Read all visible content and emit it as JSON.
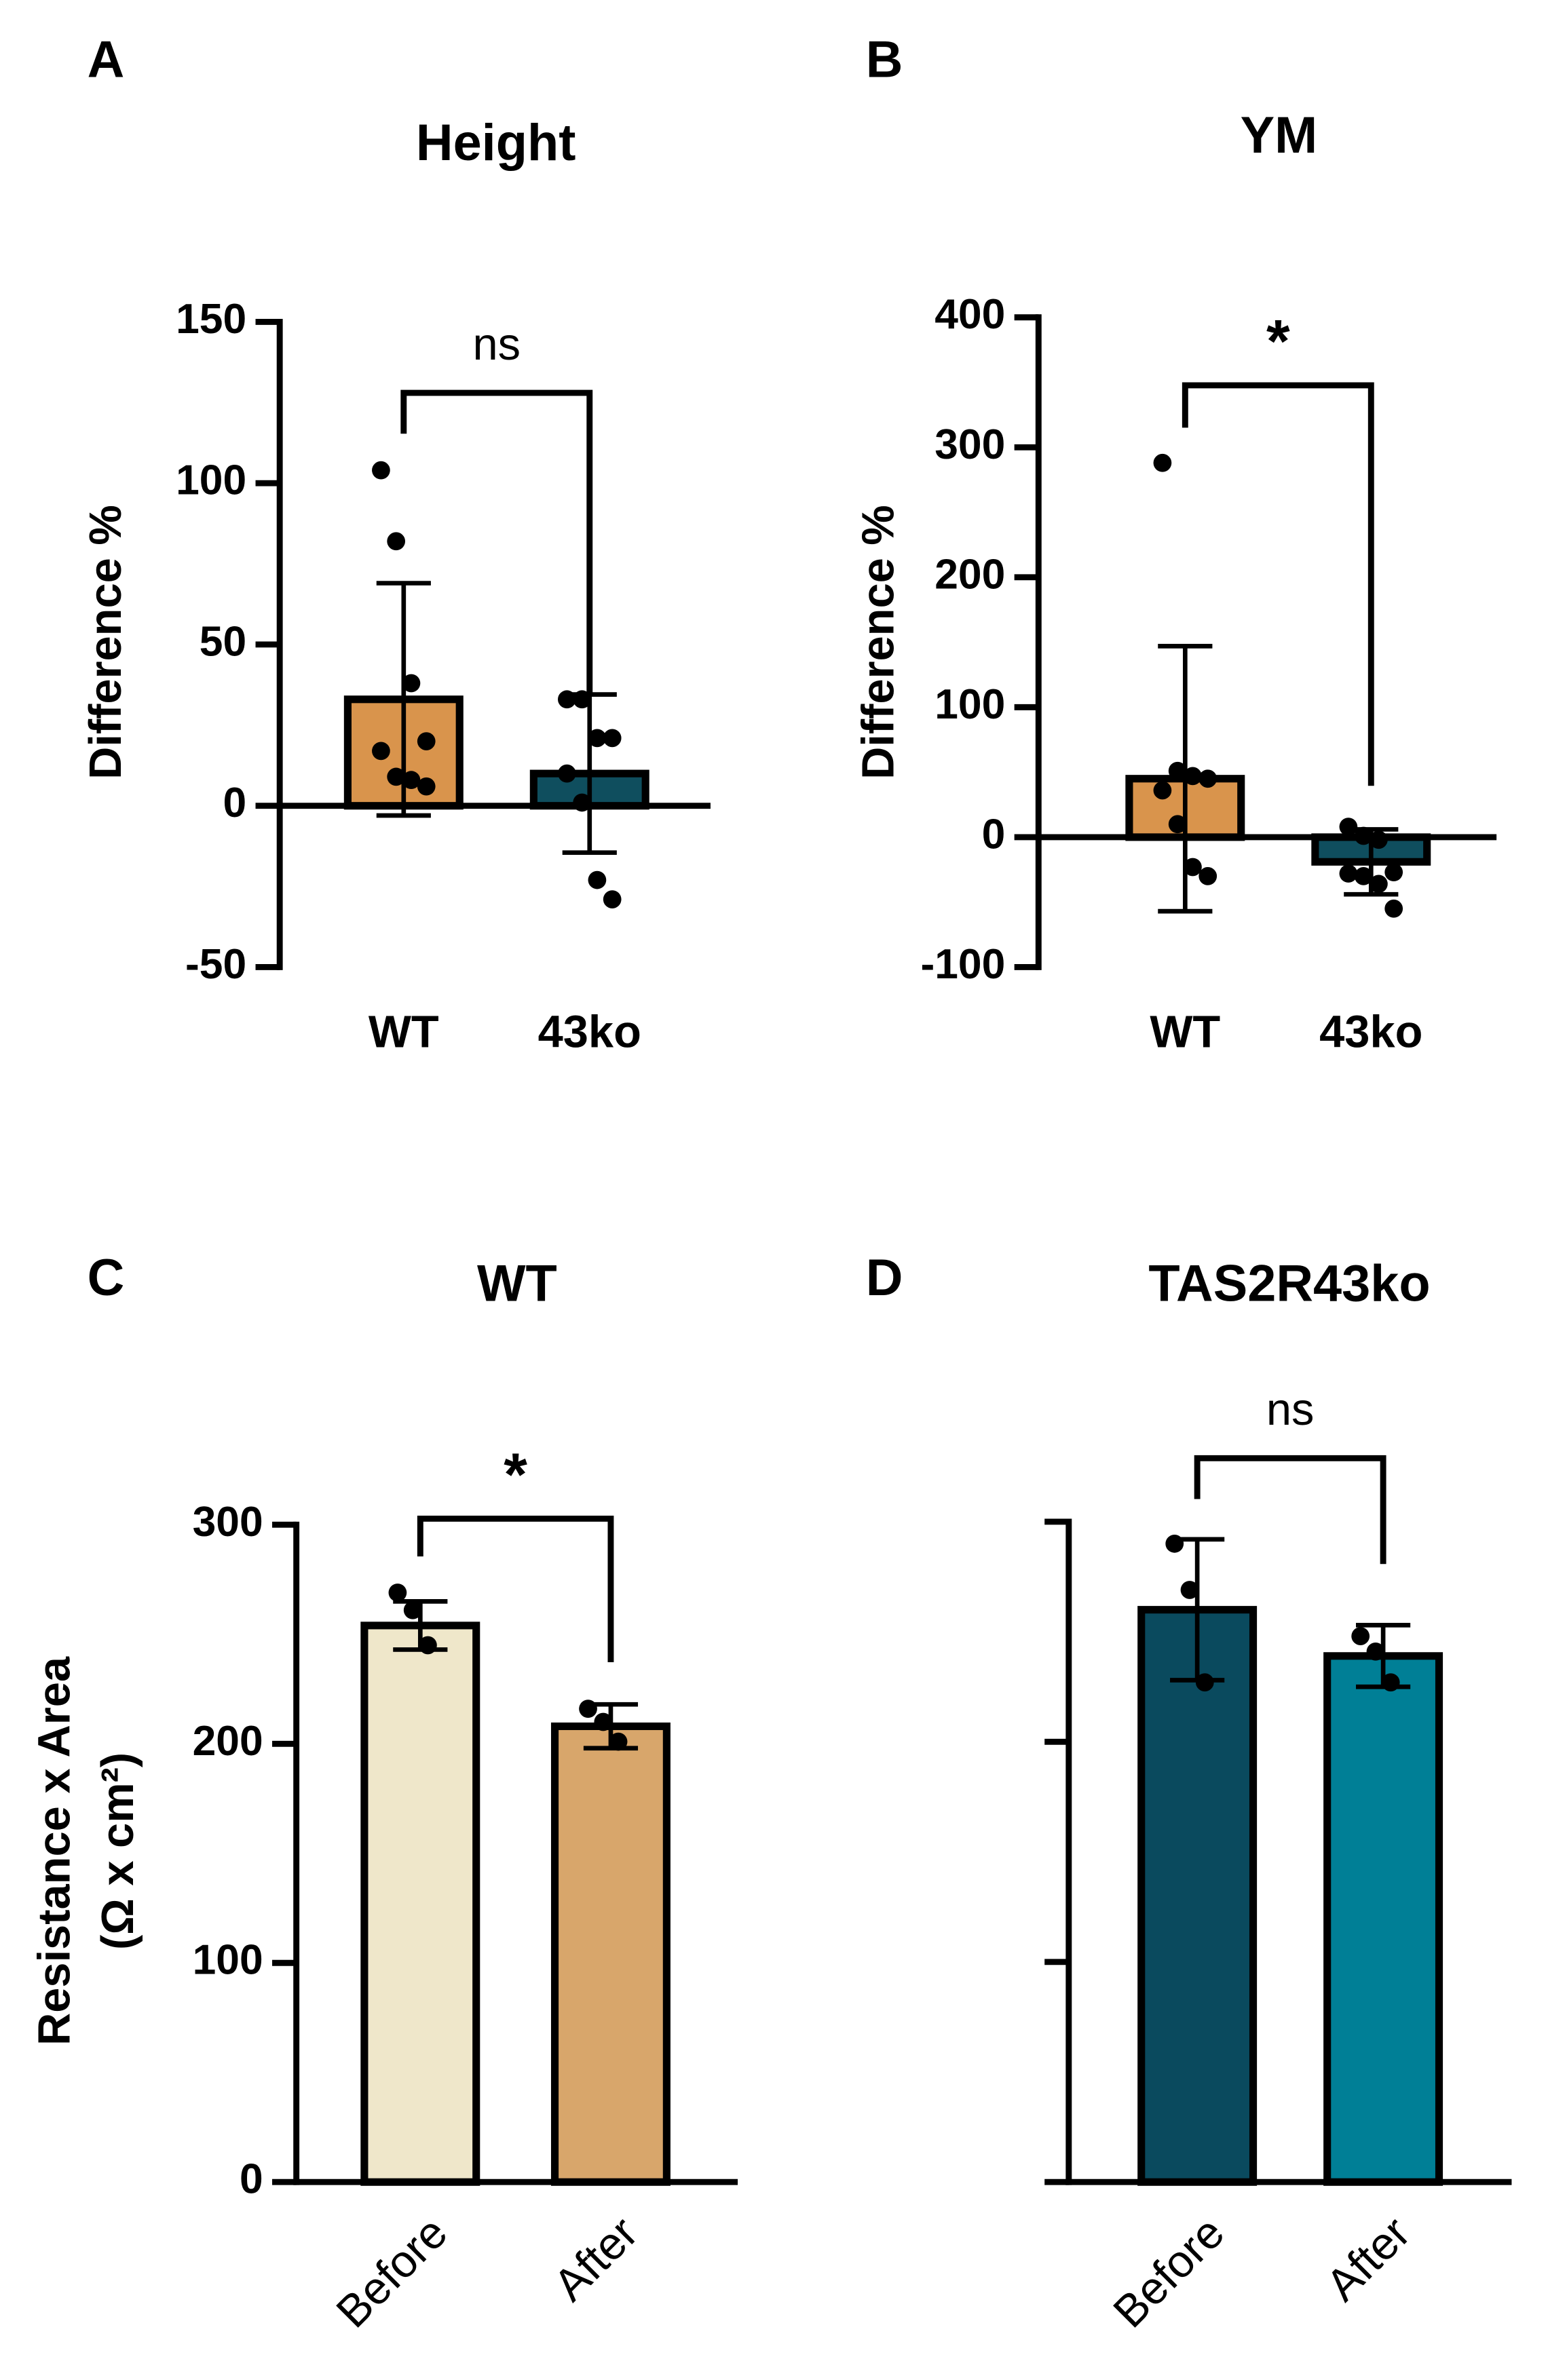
{
  "chart_data": [
    {
      "type": "bar",
      "panel": "A",
      "title": "Height",
      "ylabel": [
        "Difference %"
      ],
      "categories": [
        "WT",
        "43ko"
      ],
      "values": [
        33,
        10
      ],
      "errors": [
        36,
        24.5
      ],
      "colors": [
        "#d9944c",
        "#0f4e5e"
      ],
      "points": [
        [
          104,
          82,
          38,
          20,
          17,
          9,
          8,
          6
        ],
        [
          33,
          33,
          21,
          21,
          10,
          1,
          -23,
          -29
        ]
      ],
      "significance": "ns",
      "ylim": [
        -50,
        150
      ],
      "yticks": [
        -50,
        0,
        50,
        100,
        150
      ]
    },
    {
      "type": "bar",
      "panel": "B",
      "title": "YM",
      "ylabel": [
        "Difference %"
      ],
      "categories": [
        "WT",
        "43ko"
      ],
      "values": [
        45,
        -19
      ],
      "errors": [
        102,
        25
      ],
      "colors": [
        "#d9944c",
        "#0f4e5e"
      ],
      "points": [
        [
          288,
          51,
          47,
          45,
          36,
          10,
          -23,
          -30
        ],
        [
          8,
          1,
          -2,
          -27,
          -28,
          -30,
          -36,
          -55
        ]
      ],
      "significance": "*",
      "ylim": [
        -100,
        400
      ],
      "yticks": [
        -100,
        0,
        100,
        200,
        300,
        400
      ]
    },
    {
      "type": "bar",
      "panel": "C",
      "title": "WT",
      "ylabel": [
        "Resistance x Area",
        "(Ω x cm²)"
      ],
      "categories": [
        "Before",
        "After"
      ],
      "values": [
        254,
        208
      ],
      "errors": [
        11,
        10
      ],
      "colors": [
        "#efe7ca",
        "#d8a66b"
      ],
      "points": [
        [
          269,
          261,
          245
        ],
        [
          216,
          210,
          201
        ]
      ],
      "significance": "*",
      "ylim": [
        0,
        300
      ],
      "yticks": [
        0,
        100,
        200,
        300
      ]
    },
    {
      "type": "bar",
      "panel": "D",
      "title": "TAS2R43ko",
      "categories": [
        "Before",
        "After"
      ],
      "values": [
        260,
        239
      ],
      "errors": [
        32,
        14
      ],
      "colors": [
        "#0a4a5e",
        "#007f96"
      ],
      "points": [
        [
          290,
          269,
          227
        ],
        [
          248,
          241,
          227
        ]
      ],
      "significance": "ns",
      "ylim": [
        0,
        300
      ],
      "yticks": [
        0,
        100,
        200,
        300
      ],
      "show_tick_labels": false
    }
  ]
}
